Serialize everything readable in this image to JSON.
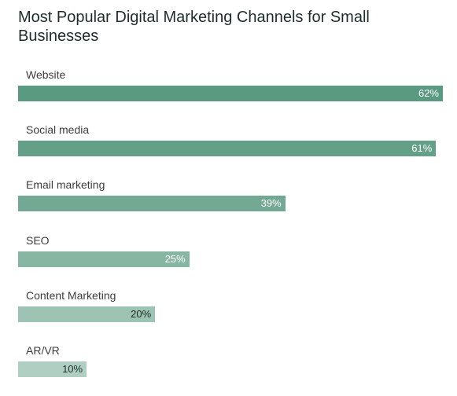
{
  "chart_data": {
    "type": "bar",
    "orientation": "horizontal",
    "title": "Most Popular Digital Marketing Channels for Small Businesses",
    "xlabel": "",
    "ylabel": "",
    "categories": [
      "Website",
      "Social media",
      "Email marketing",
      "SEO",
      "Content Marketing",
      "AR/VR"
    ],
    "values": [
      62,
      61,
      39,
      25,
      20,
      10
    ],
    "value_labels": [
      "62%",
      "61%",
      "39%",
      "25%",
      "20%",
      "10%"
    ],
    "xlim": [
      0,
      62
    ],
    "grid": false,
    "legend": "none",
    "colors": [
      "#5a9a80",
      "#64a088",
      "#73a994",
      "#87b6a3",
      "#9cc3b3",
      "#b0cfc2"
    ],
    "label_colors": [
      "#ffffff",
      "#ffffff",
      "#ffffff",
      "#ffffff",
      "#1f2d2a",
      "#1f2d2a"
    ]
  }
}
